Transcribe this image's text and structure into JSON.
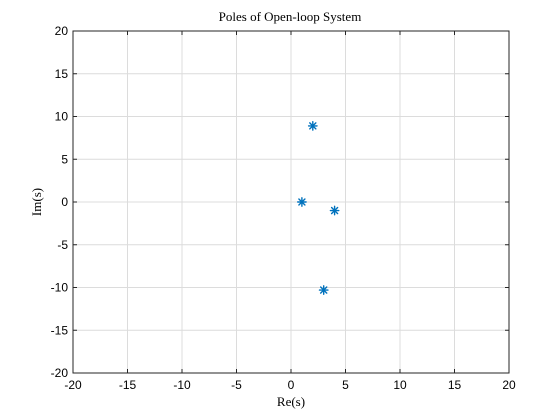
{
  "chart_data": {
    "type": "scatter",
    "title": "Poles of Open-loop System",
    "xlabel": "Re(s)",
    "ylabel": "Im(s)",
    "xlim": [
      -20,
      20
    ],
    "ylim": [
      -20,
      20
    ],
    "xticks": [
      -20,
      -15,
      -10,
      -5,
      0,
      5,
      10,
      15,
      20
    ],
    "yticks": [
      -20,
      -15,
      -10,
      -5,
      0,
      5,
      10,
      15,
      20
    ],
    "grid": true,
    "marker": "asterisk",
    "color": "#0072BD",
    "points": [
      {
        "x": 2.0,
        "y": 8.9
      },
      {
        "x": 1.0,
        "y": 0.0
      },
      {
        "x": 4.0,
        "y": -1.0
      },
      {
        "x": 3.0,
        "y": -10.3
      }
    ]
  }
}
